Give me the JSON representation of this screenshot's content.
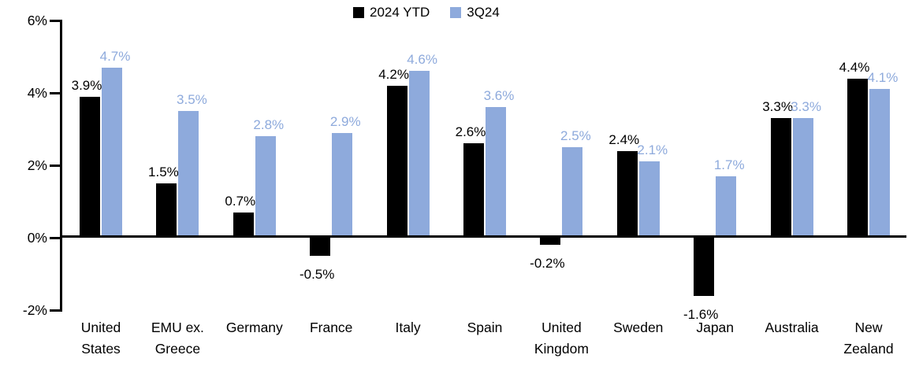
{
  "chart_data": {
    "type": "bar",
    "title": "",
    "grid": false,
    "legend_position": "top-center",
    "ylim": [
      -2,
      6
    ],
    "y_axis": {
      "ticks": [
        {
          "value": 6,
          "label": "6%"
        },
        {
          "value": 4,
          "label": "4%"
        },
        {
          "value": 2,
          "label": "2%"
        },
        {
          "value": 0,
          "label": "0%"
        },
        {
          "value": -2,
          "label": "-2%"
        }
      ]
    },
    "categories": [
      "United\nStates",
      "EMU ex.\nGreece",
      "Germany",
      "France",
      "Italy",
      "Spain",
      "United\nKingdom",
      "Sweden",
      "Japan",
      "Australia",
      "New\nZealand"
    ],
    "series": [
      {
        "name": "2024 YTD",
        "color": "#000000",
        "values": [
          3.9,
          1.5,
          0.7,
          -0.5,
          4.2,
          2.6,
          -0.2,
          2.4,
          -1.6,
          3.3,
          4.4
        ],
        "labels": [
          "3.9%",
          "1.5%",
          "0.7%",
          "-0.5%",
          "4.2%",
          "2.6%",
          "-0.2%",
          "2.4%",
          "-1.6%",
          "3.3%",
          "4.4%"
        ]
      },
      {
        "name": "3Q24",
        "color": "#8EAADC",
        "values": [
          4.7,
          3.5,
          2.8,
          2.9,
          4.6,
          3.6,
          2.5,
          2.1,
          1.7,
          3.3,
          4.1
        ],
        "labels": [
          "4.7%",
          "3.5%",
          "2.8%",
          "2.9%",
          "4.6%",
          "3.6%",
          "2.5%",
          "2.1%",
          "1.7%",
          "3.3%",
          "4.1%"
        ]
      }
    ]
  }
}
